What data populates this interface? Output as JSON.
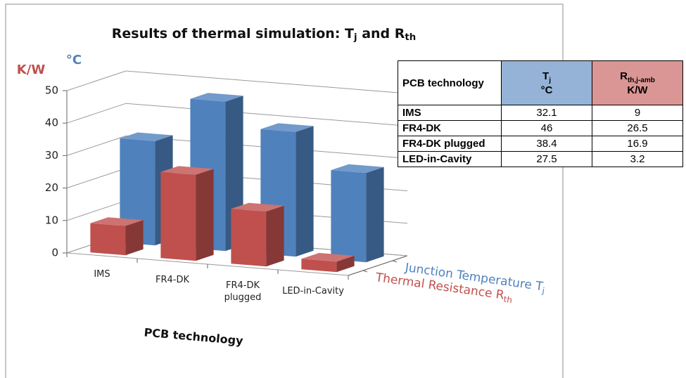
{
  "chart_data": {
    "type": "bar3d",
    "title": [
      "Results of thermal simulation: T",
      {
        "sub": "j"
      },
      " and R",
      {
        "sub": "th"
      }
    ],
    "y_axis_labels": [
      {
        "text": "K/W",
        "color": "#c0504d"
      },
      {
        "text": "°C",
        "color": "#4f81bd"
      }
    ],
    "x_label": "PCB technology",
    "categories": [
      "IMS",
      "FR4-DK",
      "FR4-DK plugged",
      "LED-in-Cavity"
    ],
    "series": [
      {
        "name": [
          "Junction Temperature T",
          {
            "sub": "j"
          }
        ],
        "color": "#4f81bd",
        "values": [
          32.1,
          46,
          38.4,
          27.5
        ]
      },
      {
        "name": [
          "Thermal Resistance R",
          {
            "sub": "th"
          }
        ],
        "color": "#c0504d",
        "values": [
          9,
          26.5,
          16.9,
          3.2
        ]
      }
    ],
    "ylim": [
      0,
      50
    ],
    "yticks": [
      0,
      10,
      20,
      30,
      40,
      50
    ],
    "grid": true,
    "table": {
      "columns": [
        {
          "label": [
            "PCB technology"
          ]
        },
        {
          "label": [
            "T",
            {
              "sub": "j"
            }
          ],
          "unit": "°C",
          "color": "#95b3d7"
        },
        {
          "label": [
            "R",
            {
              "sub": "th,j-amb"
            }
          ],
          "unit": "K/W",
          "color": "#da9694"
        }
      ]
    }
  }
}
